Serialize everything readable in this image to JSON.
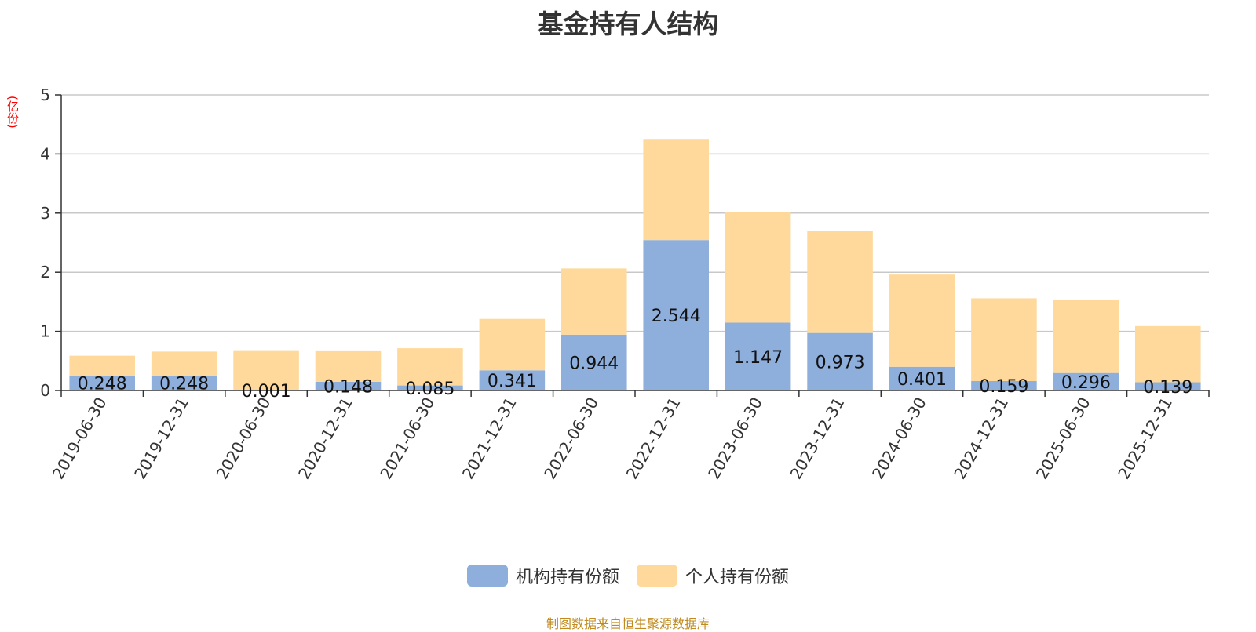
{
  "chart_data": {
    "type": "bar",
    "stacked": true,
    "title": "基金持有人结构",
    "ylabel": "(亿份)",
    "ylim": [
      0,
      5
    ],
    "yticks": [
      "0",
      "1",
      "2",
      "3",
      "4",
      "5"
    ],
    "grid": true,
    "legend_position": "bottom",
    "categories": [
      "2019-06-30",
      "2019-12-31",
      "2020-06-30",
      "2020-12-31",
      "2021-06-30",
      "2021-12-31",
      "2022-06-30",
      "2022-12-31",
      "2023-06-30",
      "2023-12-31",
      "2024-06-30",
      "2024-12-31",
      "2025-06-30",
      "2025-12-31"
    ],
    "series": [
      {
        "name": "机构持有份额",
        "color": "#8eaedb",
        "values": [
          0.248,
          0.248,
          0.001,
          0.148,
          0.085,
          0.341,
          0.944,
          2.544,
          1.147,
          0.973,
          0.401,
          0.159,
          0.296,
          0.139
        ],
        "labels": [
          "0.248",
          "0.248",
          "0.001",
          "0.148",
          "0.085",
          "0.341",
          "0.944",
          "2.544",
          "1.147",
          "0.973",
          "0.401",
          "0.159",
          "0.296",
          "0.139"
        ]
      },
      {
        "name": "个人持有份额",
        "color": "#fed99b",
        "values": [
          0.34,
          0.41,
          0.68,
          0.53,
          0.63,
          0.87,
          1.12,
          1.71,
          1.87,
          1.73,
          1.56,
          1.4,
          1.24,
          0.95
        ]
      }
    ],
    "source_note": "制图数据来自恒生聚源数据库"
  }
}
